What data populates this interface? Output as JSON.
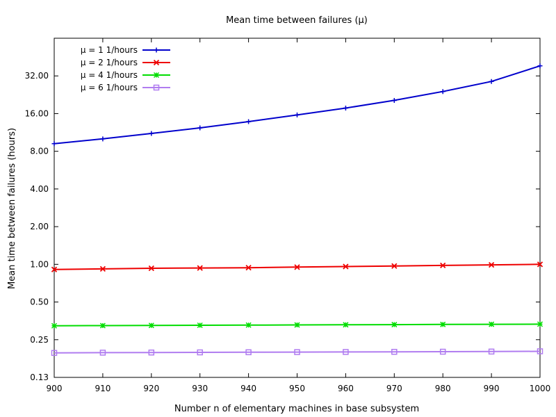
{
  "chart_data": {
    "type": "line",
    "title": "Mean time between failures (μ)",
    "xlabel": "Number n of elementary machines in base subsystem",
    "ylabel": "Mean time between failures (hours)",
    "y_scale": "log2",
    "xlim": [
      900,
      1000
    ],
    "ylim": [
      0.125,
      64
    ],
    "x_ticks": [
      900,
      910,
      920,
      930,
      940,
      950,
      960,
      970,
      980,
      990,
      1000
    ],
    "x_tick_labels": [
      "900",
      "910",
      "920",
      "930",
      "940",
      "950",
      "960",
      "970",
      "980",
      "990",
      "1000"
    ],
    "y_ticks": [
      0.125,
      0.25,
      0.5,
      1,
      2,
      4,
      8,
      16,
      32
    ],
    "y_tick_labels": [
      "0.13",
      "0.25",
      "0.50",
      "1.00",
      "2.00",
      "4.00",
      "8.00",
      "16.00",
      "32.00"
    ],
    "legend_position": "top-left",
    "x": [
      900,
      910,
      920,
      930,
      940,
      950,
      960,
      970,
      980,
      990,
      1000
    ],
    "series": [
      {
        "name": "μ = 1 1/hours",
        "color": "#0000cc",
        "marker": "plus",
        "values": [
          9.2,
          10.05,
          11.1,
          12.3,
          13.8,
          15.6,
          17.7,
          20.4,
          24.0,
          28.9,
          38.5
        ]
      },
      {
        "name": "μ = 2 1/hours",
        "color": "#ee0000",
        "marker": "cross",
        "values": [
          0.91,
          0.92,
          0.93,
          0.935,
          0.94,
          0.95,
          0.96,
          0.97,
          0.98,
          0.99,
          1.0
        ]
      },
      {
        "name": "μ = 4 1/hours",
        "color": "#00dd00",
        "marker": "star",
        "values": [
          0.323,
          0.324,
          0.325,
          0.326,
          0.327,
          0.328,
          0.329,
          0.33,
          0.331,
          0.332,
          0.333
        ]
      },
      {
        "name": "μ = 6 1/hours",
        "color": "#b07cf0",
        "marker": "square",
        "values": [
          0.196,
          0.197,
          0.1975,
          0.198,
          0.1985,
          0.199,
          0.1995,
          0.2,
          0.2005,
          0.201,
          0.202
        ]
      }
    ]
  }
}
